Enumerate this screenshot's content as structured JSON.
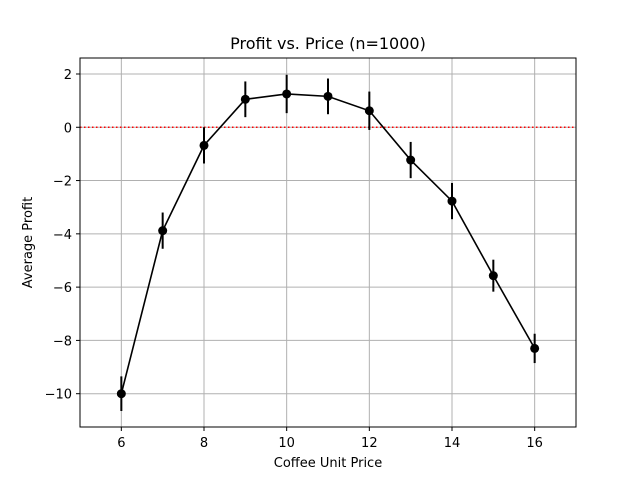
{
  "chart_data": {
    "type": "line",
    "title": "Profit vs. Price (n=1000)",
    "xlabel": "Coffee Unit Price",
    "ylabel": "Average Profit",
    "xlim": [
      5,
      17
    ],
    "ylim": [
      -11.25,
      2.6
    ],
    "xticks": [
      6,
      8,
      10,
      12,
      14,
      16
    ],
    "yticks": [
      -10,
      -8,
      -6,
      -4,
      -2,
      0,
      2
    ],
    "ytick_labels": [
      "−10",
      "−8",
      "−6",
      "−4",
      "−2",
      "0",
      "2"
    ],
    "grid": true,
    "reference_line": {
      "y": 0,
      "color": "#ff0000",
      "style": "dotted"
    },
    "series": [
      {
        "color": "#000000",
        "marker": "circle",
        "x": [
          6,
          7,
          8,
          9,
          10,
          11,
          12,
          13,
          14,
          15,
          16
        ],
        "y": [
          -10.0,
          -3.88,
          -0.68,
          1.05,
          1.25,
          1.16,
          0.62,
          -1.23,
          -2.77,
          -5.57,
          -8.3
        ],
        "error": [
          0.65,
          0.68,
          0.68,
          0.67,
          0.72,
          0.67,
          0.72,
          0.68,
          0.68,
          0.6,
          0.55
        ]
      }
    ]
  }
}
